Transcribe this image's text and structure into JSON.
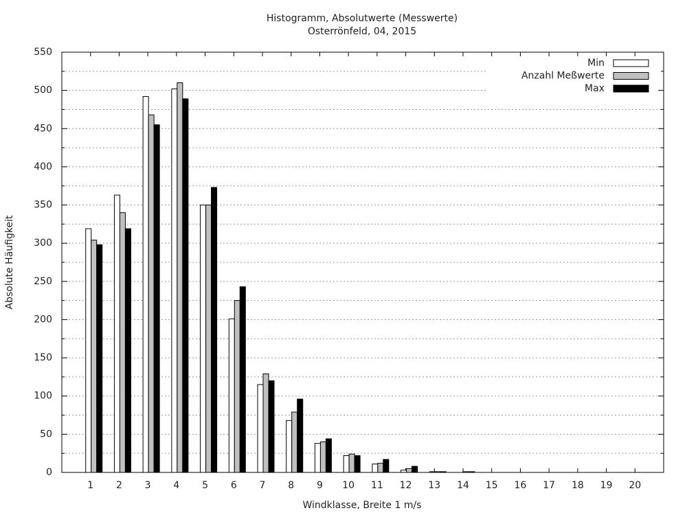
{
  "chart_data": {
    "type": "bar",
    "title": "Histogramm, Absolutwerte (Messwerte)",
    "subtitle": "Osterrönfeld, 04, 2015",
    "x_label": "Windklasse, Breite 1 m/s",
    "y_label": "Absolute Häufigkeit",
    "categories": [
      "1",
      "2",
      "3",
      "4",
      "5",
      "6",
      "7",
      "8",
      "9",
      "10",
      "11",
      "12",
      "13",
      "14",
      "15",
      "16",
      "17",
      "18",
      "19",
      "20"
    ],
    "series": [
      {
        "name": "Min",
        "color": "#ffffff",
        "values": [
          319,
          363,
          492,
          502,
          350,
          201,
          115,
          68,
          38,
          22,
          11,
          3,
          1,
          0,
          0,
          0,
          0,
          0,
          0,
          0
        ]
      },
      {
        "name": "Anzahl Meßwerte",
        "color": "#c0c0c0",
        "values": [
          304,
          340,
          468,
          510,
          350,
          225,
          129,
          79,
          40,
          24,
          12,
          5,
          1,
          1,
          0,
          0,
          0,
          0,
          0,
          0
        ]
      },
      {
        "name": "Max",
        "color": "#000000",
        "values": [
          298,
          319,
          455,
          489,
          373,
          243,
          120,
          96,
          44,
          22,
          17,
          8,
          1,
          1,
          0,
          0,
          0,
          0,
          0,
          0
        ]
      }
    ],
    "ylim": [
      0,
      550
    ],
    "yticks": [
      0,
      50,
      100,
      150,
      200,
      250,
      300,
      350,
      400,
      450,
      500,
      550
    ],
    "yminorticks": [
      25,
      75,
      125,
      175,
      225,
      275,
      325,
      375,
      425,
      475,
      525
    ],
    "grid": true,
    "legend": "top-right"
  }
}
